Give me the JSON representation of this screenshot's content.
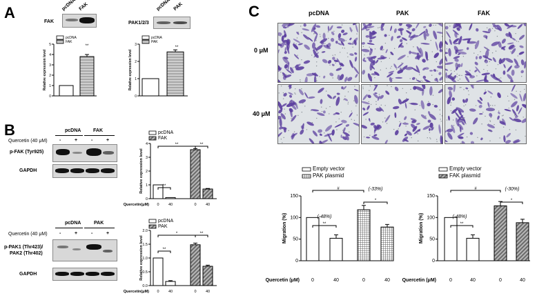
{
  "panels": {
    "A": "A",
    "B": "B",
    "C": "C"
  },
  "A": {
    "left": {
      "blot_label": "FAK",
      "lanes": [
        "pcDNA",
        "FAK"
      ],
      "chart_data": {
        "type": "bar",
        "categories": [
          "pcDNA",
          "FAK"
        ],
        "values": [
          1.0,
          3.8
        ],
        "errors": [
          0,
          0.2
        ],
        "ylabel": "Relative expression level",
        "ylim": [
          0,
          5
        ],
        "yticks": [
          "0",
          "1",
          "2",
          "3",
          "4",
          "5"
        ],
        "legend": [
          "pcDNA",
          "FAK"
        ],
        "annotation": "**",
        "colors": [
          "#ffffff",
          "#9a9a9a"
        ]
      }
    },
    "right": {
      "blot_label": "PAK1/2/3",
      "lanes": [
        "pcDNA",
        "PAK"
      ],
      "chart_data": {
        "type": "bar",
        "categories": [
          "pcDNA",
          "PAK"
        ],
        "values": [
          1.0,
          2.55
        ],
        "errors": [
          0,
          0.12
        ],
        "ylabel": "Relative expression level",
        "ylim": [
          0,
          3
        ],
        "yticks": [
          "0",
          "1",
          "2",
          "3"
        ],
        "legend": [
          "pcDNA",
          "PAK"
        ],
        "annotation": "**",
        "colors": [
          "#ffffff",
          "#9a9a9a"
        ]
      }
    }
  },
  "B": {
    "top": {
      "groups": [
        "pcDNA",
        "FAK"
      ],
      "treat_label": "Quercetin (40 μM)",
      "signs": [
        "-",
        "+",
        "-",
        "+"
      ],
      "rows": [
        "p-FAK (Tyr925)",
        "GAPDH"
      ],
      "chart_data": {
        "type": "bar",
        "values": [
          1.0,
          0.08,
          3.55,
          0.7
        ],
        "errors": [
          0,
          0,
          0.08,
          0.04
        ],
        "ylabel": "Relative expression level",
        "ylim": [
          0,
          4
        ],
        "yticks": [
          "0",
          "1",
          "2",
          "3",
          "4"
        ],
        "legend": [
          "pcDNA",
          "FAK"
        ],
        "xlabel": "Quercetin(μM)",
        "xticks": [
          "0",
          "40",
          "0",
          "40"
        ],
        "brackets": [
          "**",
          "**",
          "**"
        ]
      }
    },
    "bottom": {
      "groups": [
        "pcDNA",
        "PAK"
      ],
      "treat_label": "Quercetin (40 μM)",
      "signs": [
        "-",
        "+",
        "-",
        "+"
      ],
      "rows": [
        "p-PAK1 (Thr423)/",
        "PAK2 (Thr402)",
        "GAPDH"
      ],
      "chart_data": {
        "type": "bar",
        "values": [
          1.0,
          0.15,
          1.48,
          0.7
        ],
        "errors": [
          0,
          0.03,
          0.06,
          0.04
        ],
        "ylabel": "Relative expression level",
        "ylim": [
          0,
          2
        ],
        "yticks": [
          "0.0",
          "0.5",
          "1.0",
          "1.5",
          "2.0"
        ],
        "legend": [
          "pcDNA",
          "PAK"
        ],
        "xlabel": "Quercetin(μM)",
        "xticks": [
          "0",
          "40",
          "0",
          "40"
        ],
        "brackets": [
          "*",
          "**",
          "**"
        ]
      }
    }
  },
  "C": {
    "cols": [
      "pcDNA",
      "PAK",
      "FAK"
    ],
    "rows": [
      "0 μM",
      "40 μM"
    ],
    "left": {
      "chart_data": {
        "type": "bar",
        "values": [
          100,
          52,
          118,
          78
        ],
        "errors": [
          0,
          8,
          10,
          6
        ],
        "ylabel": "Migration (%)",
        "ylim": [
          0,
          150
        ],
        "yticks": [
          "0",
          "50",
          "100",
          "150"
        ],
        "legend": [
          "Empty vector",
          "PAK plasmid"
        ],
        "xlabel": "Quercetin (μM)",
        "xticks": [
          "0",
          "40",
          "0",
          "40"
        ],
        "annotations": [
          "(-48%)",
          "(-33%)",
          "**",
          "*",
          "#"
        ]
      }
    },
    "right": {
      "chart_data": {
        "type": "bar",
        "values": [
          100,
          52,
          127,
          88
        ],
        "errors": [
          0,
          8,
          10,
          8
        ],
        "ylabel": "Migration (%)",
        "ylim": [
          0,
          150
        ],
        "yticks": [
          "0",
          "50",
          "100",
          "150"
        ],
        "legend": [
          "Empty vector",
          "FAK plasmid"
        ],
        "xlabel": "Quercetin (μM)",
        "xticks": [
          "0",
          "40",
          "0",
          "40"
        ],
        "annotations": [
          "(-48%)",
          "(-30%)",
          "**",
          "*",
          "#"
        ]
      }
    }
  }
}
